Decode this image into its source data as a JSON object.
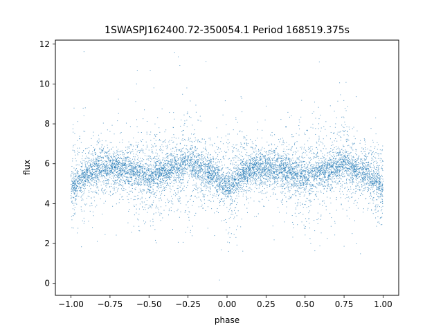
{
  "chart_data": {
    "type": "scatter",
    "title": "1SWASPJ162400.72-350054.1 Period 168519.375s",
    "xlabel": "phase",
    "ylabel": "flux",
    "xlim": [
      -1.1,
      1.1
    ],
    "ylim": [
      -0.6,
      12.2
    ],
    "x_ticks": [
      -1.0,
      -0.75,
      -0.5,
      -0.25,
      0.0,
      0.25,
      0.5,
      0.75,
      1.0
    ],
    "x_tick_labels": [
      "−1.00",
      "−0.75",
      "−0.50",
      "−0.25",
      "0.00",
      "0.25",
      "0.50",
      "0.75",
      "1.00"
    ],
    "y_ticks": [
      0,
      2,
      4,
      6,
      8,
      10,
      12
    ],
    "y_tick_labels": [
      "0",
      "2",
      "4",
      "6",
      "8",
      "10",
      "12"
    ],
    "grid": false,
    "point_color": "#1f77b4",
    "series": [
      {
        "profile": {
          "x": [
            -1.0,
            -0.95,
            -0.9,
            -0.85,
            -0.8,
            -0.75,
            -0.7,
            -0.65,
            -0.6,
            -0.55,
            -0.5,
            -0.45,
            -0.4,
            -0.35,
            -0.3,
            -0.25,
            -0.2,
            -0.15,
            -0.1,
            -0.05,
            0.0,
            0.05,
            0.1,
            0.15,
            0.2,
            0.25,
            0.3,
            0.35,
            0.4,
            0.45,
            0.5,
            0.55,
            0.6,
            0.65,
            0.7,
            0.75,
            0.8,
            0.85,
            0.9,
            0.95,
            1.0
          ],
          "median_flux": [
            4.8,
            5.2,
            5.5,
            5.7,
            5.8,
            5.8,
            5.8,
            5.7,
            5.6,
            5.4,
            5.3,
            5.5,
            5.6,
            5.7,
            5.9,
            6.1,
            5.9,
            5.7,
            5.5,
            5.2,
            4.8,
            5.2,
            5.5,
            5.7,
            5.8,
            5.8,
            5.8,
            5.7,
            5.6,
            5.4,
            5.3,
            5.5,
            5.6,
            5.7,
            5.9,
            6.1,
            5.9,
            5.7,
            5.5,
            5.2,
            4.8
          ],
          "spread": [
            1.3,
            1.2,
            1.0,
            0.9,
            0.8,
            0.7,
            0.7,
            0.8,
            0.9,
            1.2,
            1.3,
            1.2,
            1.1,
            1.1,
            1.2,
            1.4,
            1.2,
            0.9,
            0.8,
            1.0,
            1.3,
            1.2,
            1.0,
            0.9,
            0.8,
            0.7,
            0.7,
            0.8,
            0.9,
            1.2,
            1.3,
            1.2,
            1.1,
            1.1,
            1.2,
            1.4,
            1.2,
            0.9,
            0.8,
            1.0,
            1.3
          ]
        }
      }
    ]
  }
}
